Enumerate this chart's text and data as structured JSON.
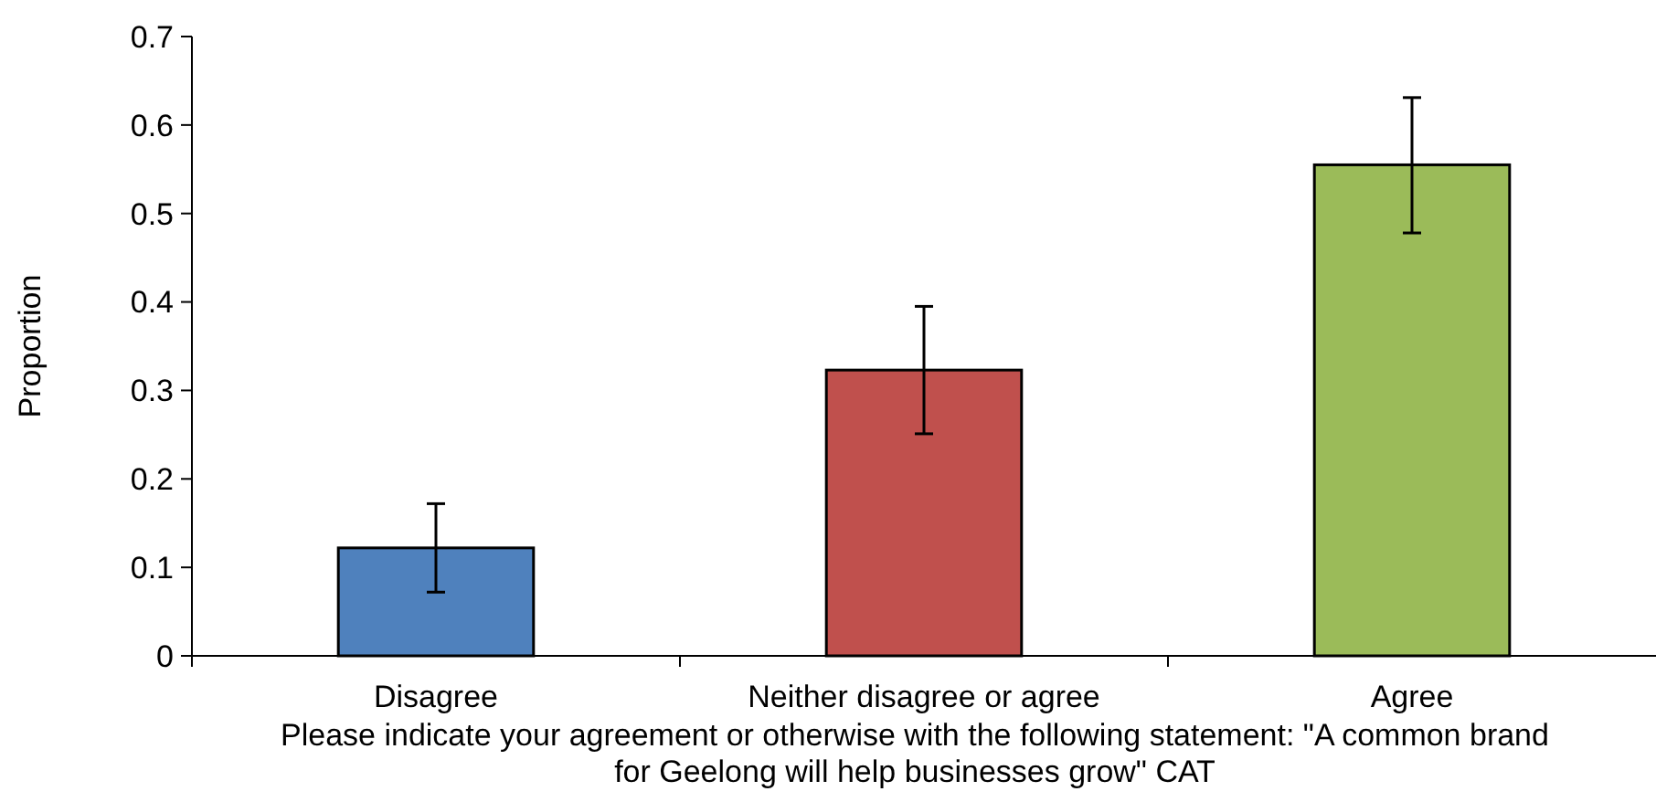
{
  "chart_data": {
    "type": "bar",
    "xlabel": "Please indicate your agreement or otherwise with the following statement: \"A common brand for Geelong will help businesses grow\" CAT",
    "ylabel": "Proportion",
    "categories": [
      "Disagree",
      "Neither disagree or agree",
      "Agree"
    ],
    "values": [
      0.122,
      0.323,
      0.555
    ],
    "colors": [
      "#4f81bd",
      "#c0504d",
      "#9bbb59"
    ],
    "errors": [
      [
        0.072,
        0.172
      ],
      [
        0.251,
        0.395
      ],
      [
        0.478,
        0.631
      ]
    ],
    "ylim": [
      0,
      0.7
    ],
    "yticks": [
      0,
      0.1,
      0.2,
      0.3,
      0.4,
      0.5,
      0.6,
      0.7
    ],
    "grid": false
  }
}
